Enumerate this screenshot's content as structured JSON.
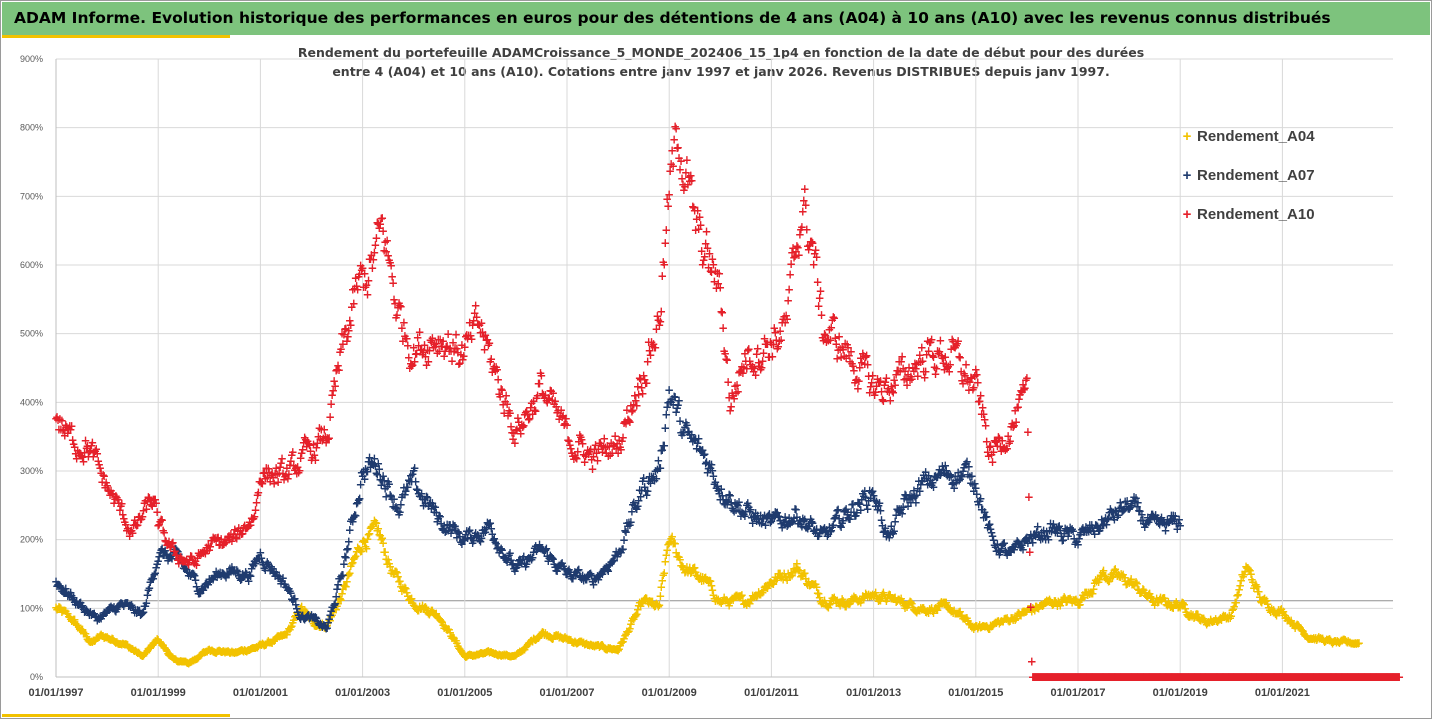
{
  "header": {
    "title": "ADAM Informe. Evolution historique des performances en euros pour des détentions de 4 ans (A04) à 10 ans (A10) avec les revenus connus distribués"
  },
  "chart_data": {
    "type": "scatter",
    "subtitle_line1": "Rendement du portefeuille ADAMCroissance_5_MONDE_202406_15_1p4  en fonction de la date de début pour des durées",
    "subtitle_line2": "entre 4 (A04) et 10 ans (A10). Cotations entre janv 1997 et janv 2026. Revenus DISTRIBUES depuis janv 1997.",
    "x_range": [
      1997.0,
      2023.3
    ],
    "ylim": [
      0,
      900
    ],
    "yticks": [
      0,
      100,
      200,
      300,
      400,
      500,
      600,
      700,
      800,
      900
    ],
    "ytick_labels": [
      "0%",
      "100%",
      "200%",
      "300%",
      "400%",
      "500%",
      "600%",
      "700%",
      "800%",
      "900%"
    ],
    "xticks": [
      1997,
      1999,
      2001,
      2003,
      2005,
      2007,
      2009,
      2011,
      2013,
      2015,
      2017,
      2019,
      2021
    ],
    "xtick_labels": [
      "01/01/1997",
      "01/01/1999",
      "01/01/2001",
      "01/01/2003",
      "01/01/2005",
      "01/01/2007",
      "01/01/2009",
      "01/01/2011",
      "01/01/2013",
      "01/01/2015",
      "01/01/2017",
      "01/01/2019",
      "01/01/2021"
    ],
    "legend_position": "right",
    "series": [
      {
        "name": "Rendement_A04",
        "color": "#f2c200",
        "x_start": 1997.0,
        "x_end": 2022.5,
        "key_points": [
          [
            1997.0,
            100
          ],
          [
            1997.3,
            85
          ],
          [
            1997.7,
            50
          ],
          [
            1997.9,
            60
          ],
          [
            1998.3,
            50
          ],
          [
            1998.7,
            30
          ],
          [
            1999.0,
            55
          ],
          [
            1999.3,
            25
          ],
          [
            1999.6,
            20
          ],
          [
            2000.0,
            40
          ],
          [
            2000.5,
            35
          ],
          [
            2001.0,
            45
          ],
          [
            2001.5,
            60
          ],
          [
            2001.8,
            100
          ],
          [
            2002.0,
            80
          ],
          [
            2002.3,
            75
          ],
          [
            2002.6,
            120
          ],
          [
            2003.0,
            200
          ],
          [
            2003.3,
            210
          ],
          [
            2003.6,
            150
          ],
          [
            2004.0,
            110
          ],
          [
            2004.5,
            90
          ],
          [
            2005.0,
            30
          ],
          [
            2005.5,
            35
          ],
          [
            2006.0,
            30
          ],
          [
            2006.5,
            65
          ],
          [
            2007.0,
            55
          ],
          [
            2007.5,
            45
          ],
          [
            2008.0,
            40
          ],
          [
            2008.5,
            110
          ],
          [
            2008.8,
            100
          ],
          [
            2009.0,
            200
          ],
          [
            2009.3,
            160
          ],
          [
            2009.7,
            140
          ],
          [
            2010.0,
            110
          ],
          [
            2010.5,
            110
          ],
          [
            2011.0,
            140
          ],
          [
            2011.5,
            160
          ],
          [
            2012.0,
            115
          ],
          [
            2012.5,
            110
          ],
          [
            2013.0,
            120
          ],
          [
            2013.5,
            110
          ],
          [
            2014.0,
            100
          ],
          [
            2014.5,
            100
          ],
          [
            2015.0,
            70
          ],
          [
            2015.5,
            80
          ],
          [
            2016.0,
            95
          ],
          [
            2016.5,
            110
          ],
          [
            2017.0,
            110
          ],
          [
            2017.5,
            150
          ],
          [
            2018.0,
            140
          ],
          [
            2018.5,
            110
          ],
          [
            2019.0,
            105
          ],
          [
            2019.5,
            80
          ],
          [
            2020.0,
            90
          ],
          [
            2020.3,
            160
          ],
          [
            2020.6,
            110
          ],
          [
            2021.0,
            95
          ],
          [
            2021.5,
            60
          ],
          [
            2022.0,
            50
          ],
          [
            2022.5,
            50
          ]
        ]
      },
      {
        "name": "Rendement_A07",
        "color": "#1f3b6e",
        "x_start": 1997.0,
        "x_end": 2019.0,
        "key_points": [
          [
            1997.0,
            140
          ],
          [
            1997.4,
            110
          ],
          [
            1997.8,
            85
          ],
          [
            1998.3,
            105
          ],
          [
            1998.7,
            90
          ],
          [
            1999.0,
            180
          ],
          [
            1999.4,
            170
          ],
          [
            1999.8,
            130
          ],
          [
            2000.3,
            155
          ],
          [
            2000.8,
            150
          ],
          [
            2001.0,
            180
          ],
          [
            2001.5,
            135
          ],
          [
            2001.8,
            90
          ],
          [
            2002.0,
            85
          ],
          [
            2002.3,
            70
          ],
          [
            2002.6,
            150
          ],
          [
            2003.0,
            300
          ],
          [
            2003.3,
            310
          ],
          [
            2003.7,
            250
          ],
          [
            2004.0,
            280
          ],
          [
            2004.5,
            230
          ],
          [
            2005.0,
            200
          ],
          [
            2005.5,
            220
          ],
          [
            2006.0,
            155
          ],
          [
            2006.5,
            185
          ],
          [
            2007.0,
            150
          ],
          [
            2007.5,
            140
          ],
          [
            2008.0,
            180
          ],
          [
            2008.5,
            280
          ],
          [
            2008.8,
            300
          ],
          [
            2009.0,
            420
          ],
          [
            2009.3,
            350
          ],
          [
            2009.7,
            320
          ],
          [
            2010.0,
            280
          ],
          [
            2010.5,
            240
          ],
          [
            2011.0,
            220
          ],
          [
            2011.5,
            240
          ],
          [
            2012.0,
            200
          ],
          [
            2012.5,
            240
          ],
          [
            2013.0,
            270
          ],
          [
            2013.3,
            200
          ],
          [
            2013.6,
            250
          ],
          [
            2014.0,
            280
          ],
          [
            2014.5,
            300
          ],
          [
            2015.0,
            290
          ],
          [
            2015.3,
            200
          ],
          [
            2015.7,
            175
          ],
          [
            2016.0,
            200
          ],
          [
            2016.5,
            215
          ],
          [
            2017.0,
            200
          ],
          [
            2017.5,
            225
          ],
          [
            2018.0,
            250
          ],
          [
            2018.5,
            215
          ],
          [
            2019.0,
            225
          ]
        ]
      },
      {
        "name": "Rendement_A10",
        "color": "#e5202a",
        "x_start": 1997.0,
        "x_end": 2023.3,
        "key_points": [
          [
            1997.0,
            380
          ],
          [
            1997.3,
            345
          ],
          [
            1997.6,
            340
          ],
          [
            1997.9,
            290
          ],
          [
            1998.2,
            250
          ],
          [
            1998.5,
            210
          ],
          [
            1998.9,
            260
          ],
          [
            1999.0,
            220
          ],
          [
            1999.3,
            180
          ],
          [
            1999.7,
            165
          ],
          [
            2000.0,
            190
          ],
          [
            2000.5,
            200
          ],
          [
            2000.9,
            240
          ],
          [
            2001.0,
            300
          ],
          [
            2001.5,
            290
          ],
          [
            2002.0,
            330
          ],
          [
            2002.3,
            350
          ],
          [
            2002.6,
            470
          ],
          [
            2002.9,
            560
          ],
          [
            2003.2,
            600
          ],
          [
            2003.4,
            650
          ],
          [
            2003.7,
            530
          ],
          [
            2004.0,
            480
          ],
          [
            2004.5,
            500
          ],
          [
            2005.0,
            470
          ],
          [
            2005.3,
            510
          ],
          [
            2005.6,
            440
          ],
          [
            2006.0,
            360
          ],
          [
            2006.5,
            420
          ],
          [
            2007.0,
            350
          ],
          [
            2007.5,
            320
          ],
          [
            2008.0,
            340
          ],
          [
            2008.4,
            430
          ],
          [
            2008.8,
            520
          ],
          [
            2009.0,
            700
          ],
          [
            2009.2,
            800
          ],
          [
            2009.5,
            650
          ],
          [
            2009.8,
            600
          ],
          [
            2010.0,
            560
          ],
          [
            2010.2,
            400
          ],
          [
            2010.5,
            470
          ],
          [
            2011.0,
            490
          ],
          [
            2011.3,
            510
          ],
          [
            2011.6,
            690
          ],
          [
            2011.8,
            630
          ],
          [
            2012.0,
            510
          ],
          [
            2012.5,
            470
          ],
          [
            2013.0,
            420
          ],
          [
            2013.5,
            430
          ],
          [
            2014.0,
            470
          ],
          [
            2014.5,
            470
          ],
          [
            2015.0,
            420
          ],
          [
            2015.3,
            320
          ],
          [
            2015.6,
            360
          ],
          [
            2015.8,
            380
          ],
          [
            2016.0,
            400
          ],
          [
            2016.1,
            0
          ],
          [
            2023.3,
            0
          ]
        ]
      }
    ]
  }
}
